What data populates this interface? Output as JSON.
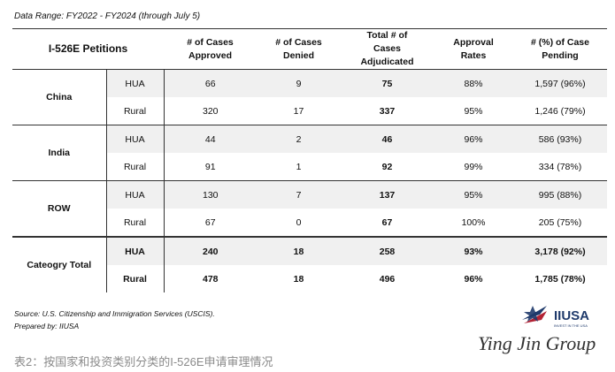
{
  "header": {
    "data_range": "Data Range: FY2022 - FY2024 (through July 5)"
  },
  "table": {
    "columns": [
      "I-526E Petitions",
      "# of Cases Approved",
      "# of Cases Denied",
      "Total # of Cases Adjudicated",
      "Approval Rates",
      "# (%) of Case Pending"
    ],
    "groups": [
      {
        "label": "China",
        "rows": [
          {
            "type": "HUA",
            "values": [
              "66",
              "9",
              "75",
              "88%",
              "1,597 (96%)"
            ]
          },
          {
            "type": "Rural",
            "values": [
              "320",
              "17",
              "337",
              "95%",
              "1,246 (79%)"
            ]
          }
        ]
      },
      {
        "label": "India",
        "rows": [
          {
            "type": "HUA",
            "values": [
              "44",
              "2",
              "46",
              "96%",
              "586 (93%)"
            ]
          },
          {
            "type": "Rural",
            "values": [
              "91",
              "1",
              "92",
              "99%",
              "334 (78%)"
            ]
          }
        ]
      },
      {
        "label": "ROW",
        "rows": [
          {
            "type": "HUA",
            "values": [
              "130",
              "7",
              "137",
              "95%",
              "995 (88%)"
            ]
          },
          {
            "type": "Rural",
            "values": [
              "67",
              "0",
              "67",
              "100%",
              "205 (75%)"
            ]
          }
        ]
      },
      {
        "label": "Cateogry Total",
        "rows": [
          {
            "type": "HUA",
            "values": [
              "240",
              "18",
              "258",
              "93%",
              "3,178 (92%)"
            ]
          },
          {
            "type": "Rural",
            "values": [
              "478",
              "18",
              "496",
              "96%",
              "1,785 (78%)"
            ]
          }
        ]
      }
    ]
  },
  "footer": {
    "source": "Source: U.S. Citizenship and Immigration Services (USCIS).",
    "prepared_by": "Prepared by: IIUSA",
    "logo": "IIUSA",
    "logo_tagline": "INVEST IN THE USA",
    "brand": "Ying Jin Group",
    "caption": "表2：按国家和投资类别分类的I-526E申请审理情况"
  }
}
